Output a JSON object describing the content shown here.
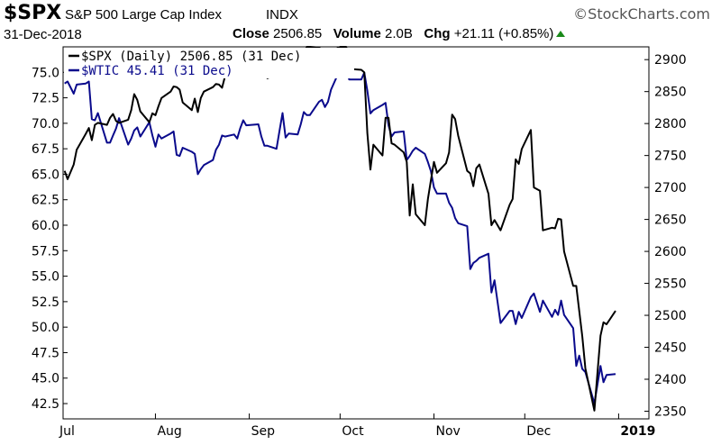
{
  "header": {
    "symbol": "$SPX",
    "name": "S&P 500 Large Cap Index",
    "exchange": "INDX",
    "brand": "StockCharts.com",
    "brand_icon": "copyright-icon",
    "date": "31-Dec-2018",
    "close_label": "Close",
    "close_value": "2506.85",
    "volume_label": "Volume",
    "volume_value": "2.0B",
    "chg_label": "Chg",
    "chg_value": "+21.11 (+0.85%)",
    "chg_icon": "up-triangle-icon",
    "chg_color": "#1a8a1a"
  },
  "chart_data": {
    "type": "line",
    "x_start": "2018-07-02",
    "x_end": "2018-12-31",
    "x_ticks": [
      {
        "label": "Jul",
        "date": "2018-07-01"
      },
      {
        "label": "Aug",
        "date": "2018-08-01"
      },
      {
        "label": "Sep",
        "date": "2018-09-01"
      },
      {
        "label": "Oct",
        "date": "2018-10-01"
      },
      {
        "label": "Nov",
        "date": "2018-11-01"
      },
      {
        "label": "Dec",
        "date": "2018-12-01"
      },
      {
        "label": "2019",
        "date": "2019-01-01",
        "bold": true
      }
    ],
    "y_left": {
      "min": 41.0,
      "max": 77.5,
      "ticks": [
        42.5,
        45.0,
        47.5,
        50.0,
        52.5,
        55.0,
        57.5,
        60.0,
        62.5,
        65.0,
        67.5,
        70.0,
        72.5,
        75.0
      ]
    },
    "y_right": {
      "min": 2338,
      "max": 2920,
      "ticks": [
        2350,
        2400,
        2450,
        2500,
        2550,
        2600,
        2650,
        2700,
        2750,
        2800,
        2850,
        2900
      ]
    },
    "grid": false,
    "legend_position": "top-left",
    "series": [
      {
        "name": "$SPX (Daily) 2506.85 (31 Dec)",
        "axis": "right",
        "color": "#000000",
        "values": [
          [
            "2018-07-02",
            2726
          ],
          [
            "2018-07-03",
            2713
          ],
          [
            "2018-07-05",
            2736
          ],
          [
            "2018-07-06",
            2759
          ],
          [
            "2018-07-09",
            2784
          ],
          [
            "2018-07-10",
            2793
          ],
          [
            "2018-07-11",
            2774
          ],
          [
            "2018-07-12",
            2798
          ],
          [
            "2018-07-13",
            2801
          ],
          [
            "2018-07-16",
            2798
          ],
          [
            "2018-07-17",
            2809
          ],
          [
            "2018-07-18",
            2815
          ],
          [
            "2018-07-19",
            2804
          ],
          [
            "2018-07-20",
            2801
          ],
          [
            "2018-07-23",
            2806
          ],
          [
            "2018-07-24",
            2821
          ],
          [
            "2018-07-25",
            2846
          ],
          [
            "2018-07-26",
            2837
          ],
          [
            "2018-07-27",
            2819
          ],
          [
            "2018-07-30",
            2802
          ],
          [
            "2018-07-31",
            2816
          ],
          [
            "2018-08-01",
            2813
          ],
          [
            "2018-08-02",
            2827
          ],
          [
            "2018-08-03",
            2840
          ],
          [
            "2018-08-06",
            2850
          ],
          [
            "2018-08-07",
            2858
          ],
          [
            "2018-08-08",
            2857
          ],
          [
            "2018-08-09",
            2853
          ],
          [
            "2018-08-10",
            2833
          ],
          [
            "2018-08-13",
            2821
          ],
          [
            "2018-08-14",
            2839
          ],
          [
            "2018-08-15",
            2818
          ],
          [
            "2018-08-16",
            2840
          ],
          [
            "2018-08-17",
            2850
          ],
          [
            "2018-08-20",
            2857
          ],
          [
            "2018-08-21",
            2862
          ],
          [
            "2018-08-22",
            2861
          ],
          [
            "2018-08-23",
            2856
          ],
          [
            "2018-08-24",
            2874
          ],
          [
            "2018-08-27",
            2896
          ],
          [
            "2018-08-28",
            2898
          ],
          [
            "2018-08-29",
            2914
          ],
          [
            "2018-08-30",
            2901
          ],
          [
            "2018-08-31",
            2902
          ],
          [
            "2018-09-04",
            2896
          ],
          [
            "2018-09-05",
            2888
          ],
          [
            "2018-09-06",
            2878
          ],
          [
            "2018-09-07",
            2871
          ],
          [
            "2018-09-10",
            2877
          ],
          [
            "2018-09-11",
            2887
          ],
          [
            "2018-09-12",
            2888
          ],
          [
            "2018-09-13",
            2904
          ],
          [
            "2018-09-14",
            2904
          ],
          [
            "2018-09-17",
            2888
          ],
          [
            "2018-09-18",
            2904
          ],
          [
            "2018-09-19",
            2907
          ],
          [
            "2018-09-20",
            2930
          ],
          [
            "2018-09-21",
            2930
          ],
          [
            "2018-09-24",
            2919
          ],
          [
            "2018-09-25",
            2915
          ],
          [
            "2018-09-26",
            2905
          ],
          [
            "2018-09-27",
            2914
          ],
          [
            "2018-09-28",
            2913
          ],
          [
            "2018-10-01",
            2924
          ],
          [
            "2018-10-02",
            2923
          ],
          [
            "2018-10-03",
            2925
          ],
          [
            "2018-10-04",
            2901
          ],
          [
            "2018-10-05",
            2885
          ],
          [
            "2018-10-08",
            2884
          ],
          [
            "2018-10-09",
            2880
          ],
          [
            "2018-10-10",
            2785
          ],
          [
            "2018-10-11",
            2728
          ],
          [
            "2018-10-12",
            2767
          ],
          [
            "2018-10-15",
            2750
          ],
          [
            "2018-10-16",
            2809
          ],
          [
            "2018-10-17",
            2809
          ],
          [
            "2018-10-18",
            2769
          ],
          [
            "2018-10-19",
            2767
          ],
          [
            "2018-10-22",
            2755
          ],
          [
            "2018-10-23",
            2740
          ],
          [
            "2018-10-24",
            2656
          ],
          [
            "2018-10-25",
            2705
          ],
          [
            "2018-10-26",
            2658
          ],
          [
            "2018-10-29",
            2641
          ],
          [
            "2018-10-30",
            2682
          ],
          [
            "2018-10-31",
            2711
          ],
          [
            "2018-11-01",
            2740
          ],
          [
            "2018-11-02",
            2723
          ],
          [
            "2018-11-05",
            2738
          ],
          [
            "2018-11-06",
            2755
          ],
          [
            "2018-11-07",
            2814
          ],
          [
            "2018-11-08",
            2807
          ],
          [
            "2018-11-09",
            2781
          ],
          [
            "2018-11-12",
            2726
          ],
          [
            "2018-11-13",
            2722
          ],
          [
            "2018-11-14",
            2702
          ],
          [
            "2018-11-15",
            2730
          ],
          [
            "2018-11-16",
            2736
          ],
          [
            "2018-11-19",
            2690
          ],
          [
            "2018-11-20",
            2641
          ],
          [
            "2018-11-21",
            2649
          ],
          [
            "2018-11-23",
            2633
          ],
          [
            "2018-11-26",
            2673
          ],
          [
            "2018-11-27",
            2682
          ],
          [
            "2018-11-28",
            2744
          ],
          [
            "2018-11-29",
            2737
          ],
          [
            "2018-11-30",
            2760
          ],
          [
            "2018-12-03",
            2790
          ],
          [
            "2018-12-04",
            2700
          ],
          [
            "2018-12-06",
            2695
          ],
          [
            "2018-12-07",
            2633
          ],
          [
            "2018-12-10",
            2637
          ],
          [
            "2018-12-11",
            2636
          ],
          [
            "2018-12-12",
            2651
          ],
          [
            "2018-12-13",
            2650
          ],
          [
            "2018-12-14",
            2600
          ],
          [
            "2018-12-17",
            2546
          ],
          [
            "2018-12-18",
            2546
          ],
          [
            "2018-12-19",
            2507
          ],
          [
            "2018-12-20",
            2467
          ],
          [
            "2018-12-21",
            2417
          ],
          [
            "2018-12-24",
            2351
          ],
          [
            "2018-12-26",
            2468
          ],
          [
            "2018-12-27",
            2489
          ],
          [
            "2018-12-28",
            2486
          ],
          [
            "2018-12-31",
            2507
          ]
        ]
      },
      {
        "name": "$WTIC 45.41 (31 Dec)",
        "axis": "left",
        "color": "#0a0a8c",
        "values": [
          [
            "2018-07-02",
            73.9
          ],
          [
            "2018-07-03",
            74.1
          ],
          [
            "2018-07-05",
            72.9
          ],
          [
            "2018-07-06",
            73.8
          ],
          [
            "2018-07-09",
            73.9
          ],
          [
            "2018-07-10",
            74.1
          ],
          [
            "2018-07-11",
            70.4
          ],
          [
            "2018-07-12",
            70.3
          ],
          [
            "2018-07-13",
            71.0
          ],
          [
            "2018-07-16",
            68.1
          ],
          [
            "2018-07-17",
            68.1
          ],
          [
            "2018-07-18",
            68.8
          ],
          [
            "2018-07-19",
            69.5
          ],
          [
            "2018-07-20",
            70.5
          ],
          [
            "2018-07-23",
            67.9
          ],
          [
            "2018-07-24",
            68.5
          ],
          [
            "2018-07-25",
            69.3
          ],
          [
            "2018-07-26",
            69.6
          ],
          [
            "2018-07-27",
            68.7
          ],
          [
            "2018-07-30",
            70.1
          ],
          [
            "2018-07-31",
            68.8
          ],
          [
            "2018-08-01",
            67.7
          ],
          [
            "2018-08-02",
            68.9
          ],
          [
            "2018-08-03",
            68.5
          ],
          [
            "2018-08-06",
            69.0
          ],
          [
            "2018-08-07",
            69.2
          ],
          [
            "2018-08-08",
            66.9
          ],
          [
            "2018-08-09",
            66.8
          ],
          [
            "2018-08-10",
            67.6
          ],
          [
            "2018-08-13",
            67.2
          ],
          [
            "2018-08-14",
            67.0
          ],
          [
            "2018-08-15",
            65.0
          ],
          [
            "2018-08-16",
            65.5
          ],
          [
            "2018-08-17",
            65.9
          ],
          [
            "2018-08-20",
            66.4
          ],
          [
            "2018-08-21",
            67.4
          ],
          [
            "2018-08-22",
            67.9
          ],
          [
            "2018-08-23",
            68.8
          ],
          [
            "2018-08-24",
            68.7
          ],
          [
            "2018-08-27",
            68.9
          ],
          [
            "2018-08-28",
            68.5
          ],
          [
            "2018-08-29",
            69.5
          ],
          [
            "2018-08-30",
            70.3
          ],
          [
            "2018-08-31",
            69.8
          ],
          [
            "2018-09-04",
            69.9
          ],
          [
            "2018-09-05",
            68.7
          ],
          [
            "2018-09-06",
            67.8
          ],
          [
            "2018-09-07",
            67.8
          ],
          [
            "2018-09-10",
            67.5
          ],
          [
            "2018-09-11",
            69.3
          ],
          [
            "2018-09-12",
            71.0
          ],
          [
            "2018-09-13",
            68.6
          ],
          [
            "2018-09-14",
            68.99
          ],
          [
            "2018-09-17",
            68.9
          ],
          [
            "2018-09-18",
            69.9
          ],
          [
            "2018-09-19",
            71.1
          ],
          [
            "2018-09-20",
            70.8
          ],
          [
            "2018-09-21",
            70.8
          ],
          [
            "2018-09-24",
            72.1
          ],
          [
            "2018-09-25",
            72.3
          ],
          [
            "2018-09-26",
            71.6
          ],
          [
            "2018-09-27",
            72.1
          ],
          [
            "2018-09-28",
            73.3
          ],
          [
            "2018-10-01",
            75.3
          ],
          [
            "2018-10-02",
            75.2
          ],
          [
            "2018-10-03",
            76.4
          ],
          [
            "2018-10-04",
            74.3
          ],
          [
            "2018-10-05",
            74.3
          ],
          [
            "2018-10-08",
            74.3
          ],
          [
            "2018-10-09",
            74.96
          ],
          [
            "2018-10-10",
            73.2
          ],
          [
            "2018-10-11",
            70.97
          ],
          [
            "2018-10-12",
            71.3
          ],
          [
            "2018-10-15",
            71.8
          ],
          [
            "2018-10-16",
            72.0
          ],
          [
            "2018-10-17",
            69.8
          ],
          [
            "2018-10-18",
            68.7
          ],
          [
            "2018-10-19",
            69.1
          ],
          [
            "2018-10-22",
            69.2
          ],
          [
            "2018-10-23",
            66.4
          ],
          [
            "2018-10-24",
            66.8
          ],
          [
            "2018-10-25",
            67.3
          ],
          [
            "2018-10-26",
            67.6
          ],
          [
            "2018-10-29",
            67.0
          ],
          [
            "2018-10-30",
            66.2
          ],
          [
            "2018-10-31",
            65.3
          ],
          [
            "2018-11-01",
            63.7
          ],
          [
            "2018-11-02",
            63.1
          ],
          [
            "2018-11-05",
            63.1
          ],
          [
            "2018-11-06",
            62.2
          ],
          [
            "2018-11-07",
            61.7
          ],
          [
            "2018-11-08",
            60.7
          ],
          [
            "2018-11-09",
            60.2
          ],
          [
            "2018-11-12",
            59.9
          ],
          [
            "2018-11-13",
            55.7
          ],
          [
            "2018-11-14",
            56.3
          ],
          [
            "2018-11-15",
            56.5
          ],
          [
            "2018-11-16",
            56.8
          ],
          [
            "2018-11-19",
            57.2
          ],
          [
            "2018-11-20",
            53.4
          ],
          [
            "2018-11-21",
            54.6
          ],
          [
            "2018-11-23",
            50.4
          ],
          [
            "2018-11-26",
            51.6
          ],
          [
            "2018-11-27",
            51.6
          ],
          [
            "2018-11-28",
            50.3
          ],
          [
            "2018-11-29",
            51.5
          ],
          [
            "2018-11-30",
            50.9
          ],
          [
            "2018-12-03",
            52.95
          ],
          [
            "2018-12-04",
            53.3
          ],
          [
            "2018-12-06",
            51.5
          ],
          [
            "2018-12-07",
            52.6
          ],
          [
            "2018-12-10",
            51.0
          ],
          [
            "2018-12-11",
            51.7
          ],
          [
            "2018-12-12",
            51.2
          ],
          [
            "2018-12-13",
            52.6
          ],
          [
            "2018-12-14",
            51.2
          ],
          [
            "2018-12-17",
            49.9
          ],
          [
            "2018-12-18",
            46.2
          ],
          [
            "2018-12-19",
            47.2
          ],
          [
            "2018-12-20",
            45.9
          ],
          [
            "2018-12-21",
            45.6
          ],
          [
            "2018-12-24",
            42.5
          ],
          [
            "2018-12-26",
            46.2
          ],
          [
            "2018-12-27",
            44.6
          ],
          [
            "2018-12-28",
            45.3
          ],
          [
            "2018-12-31",
            45.4
          ]
        ]
      }
    ]
  }
}
